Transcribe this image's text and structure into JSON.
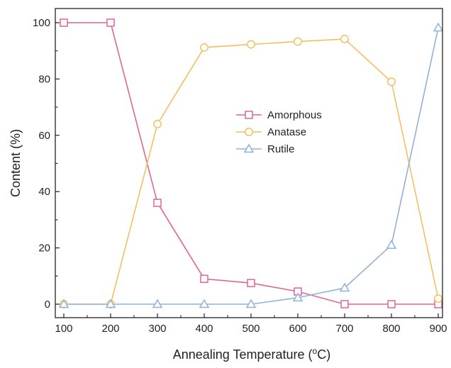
{
  "chart_data": {
    "type": "line",
    "title": "",
    "xlabel": "Annealing Temperature (",
    "xlabel_sup": "o",
    "xlabel_suffix": "C)",
    "ylabel": "Content (%)",
    "x": [
      100,
      200,
      300,
      400,
      500,
      600,
      700,
      800,
      900
    ],
    "xlim": [
      100,
      900
    ],
    "ylim": [
      0,
      100
    ],
    "x_ticks": [
      "100",
      "200",
      "300",
      "400",
      "500",
      "600",
      "700",
      "800",
      "900"
    ],
    "y_ticks": [
      "0",
      "20",
      "40",
      "60",
      "80",
      "100"
    ],
    "grid": false,
    "legend_position": "center",
    "series": [
      {
        "name": "Amorphous",
        "marker": "square",
        "color": "#e0649a",
        "values": [
          100,
          100,
          36,
          9,
          7.5,
          4.5,
          0,
          0,
          0
        ]
      },
      {
        "name": "Anatase",
        "marker": "circle",
        "color": "#f5bf62",
        "values": [
          0,
          0,
          64,
          91.2,
          92.3,
          93.3,
          94.2,
          79,
          2
        ]
      },
      {
        "name": "Rutile",
        "marker": "triangle",
        "color": "#8fb2d8",
        "values": [
          0,
          0,
          0,
          0,
          0,
          2.3,
          5.8,
          21,
          98.2
        ]
      }
    ]
  }
}
